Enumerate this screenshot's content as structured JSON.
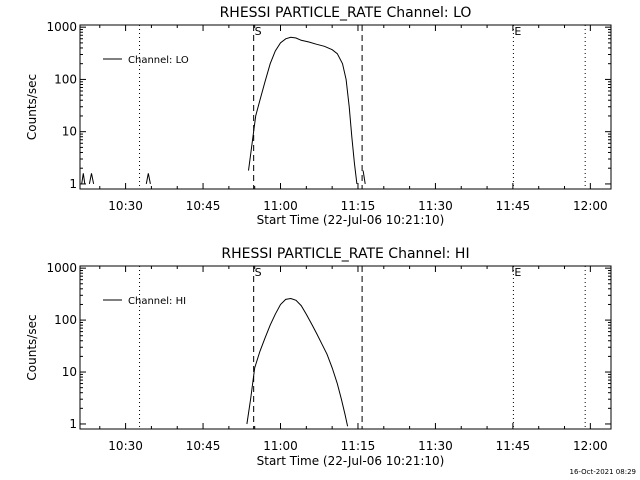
{
  "footer_timestamp": "16-Oct-2021 08:29",
  "chart_data": [
    {
      "type": "line",
      "title": "RHESSI PARTICLE_RATE Channel: LO",
      "xlabel": "Start Time (22-Jul-06 10:21:10)",
      "ylabel": "Counts/sec",
      "yscale": "log",
      "ylim": [
        0.8,
        1100
      ],
      "xlim_minutes_of_day": [
        621.17,
        724.0
      ],
      "x_ticks": [
        {
          "label": "10:30",
          "t": 630
        },
        {
          "label": "10:45",
          "t": 645
        },
        {
          "label": "11:00",
          "t": 660
        },
        {
          "label": "11:15",
          "t": 675
        },
        {
          "label": "11:30",
          "t": 690
        },
        {
          "label": "11:45",
          "t": 705
        },
        {
          "label": "12:00",
          "t": 720
        }
      ],
      "y_ticks": [
        {
          "label": "1",
          "v": 1
        },
        {
          "label": "10",
          "v": 10
        },
        {
          "label": "100",
          "v": 100
        },
        {
          "label": "1000",
          "v": 1000
        }
      ],
      "legend": {
        "position": "top-left",
        "entries": [
          "Channel: LO"
        ]
      },
      "markers": [
        {
          "label": "S",
          "t": 654.8,
          "style": "dashed"
        },
        {
          "label": "",
          "t": 675.8,
          "style": "dashed"
        },
        {
          "label": "E",
          "t": 705.1,
          "style": "dotted"
        },
        {
          "label": "",
          "t": 632.7,
          "style": "dotted"
        },
        {
          "label": "",
          "t": 719.0,
          "style": "dotted"
        }
      ],
      "series": [
        {
          "name": "Channel: LO",
          "points": [
            [
              621.5,
              1.0
            ],
            [
              621.8,
              1.6
            ],
            [
              622.1,
              1.0
            ],
            [
              623.0,
              1.0
            ],
            [
              623.4,
              1.6
            ],
            [
              623.8,
              1.0
            ],
            [
              634.0,
              1.0
            ],
            [
              634.4,
              1.6
            ],
            [
              634.8,
              1.0
            ]
          ],
          "main_points": [
            [
              653.8,
              1.8
            ],
            [
              654.5,
              6
            ],
            [
              655.2,
              20
            ],
            [
              656.0,
              40
            ],
            [
              657.0,
              90
            ],
            [
              658.0,
              200
            ],
            [
              659.0,
              350
            ],
            [
              660.0,
              500
            ],
            [
              661.0,
              600
            ],
            [
              662.0,
              640
            ],
            [
              663.0,
              620
            ],
            [
              664.0,
              560
            ],
            [
              665.5,
              520
            ],
            [
              667.0,
              470
            ],
            [
              668.5,
              430
            ],
            [
              670.0,
              370
            ],
            [
              671.0,
              310
            ],
            [
              672.0,
              200
            ],
            [
              672.7,
              100
            ],
            [
              673.3,
              30
            ],
            [
              673.8,
              8
            ],
            [
              674.3,
              2.5
            ],
            [
              674.8,
              1.0
            ]
          ],
          "tail_points": [
            [
              676.0,
              1.8
            ],
            [
              676.4,
              1.0
            ]
          ]
        }
      ]
    },
    {
      "type": "line",
      "title": "RHESSI PARTICLE_RATE Channel: HI",
      "xlabel": "Start Time (22-Jul-06 10:21:10)",
      "ylabel": "Counts/sec",
      "yscale": "log",
      "ylim": [
        0.8,
        1100
      ],
      "xlim_minutes_of_day": [
        621.17,
        724.0
      ],
      "x_ticks": [
        {
          "label": "10:30",
          "t": 630
        },
        {
          "label": "10:45",
          "t": 645
        },
        {
          "label": "11:00",
          "t": 660
        },
        {
          "label": "11:15",
          "t": 675
        },
        {
          "label": "11:30",
          "t": 690
        },
        {
          "label": "11:45",
          "t": 705
        },
        {
          "label": "12:00",
          "t": 720
        }
      ],
      "y_ticks": [
        {
          "label": "1",
          "v": 1
        },
        {
          "label": "10",
          "v": 10
        },
        {
          "label": "100",
          "v": 100
        },
        {
          "label": "1000",
          "v": 1000
        }
      ],
      "legend": {
        "position": "top-left",
        "entries": [
          "Channel: HI"
        ]
      },
      "markers": [
        {
          "label": "S",
          "t": 654.8,
          "style": "dashed"
        },
        {
          "label": "",
          "t": 675.8,
          "style": "dashed"
        },
        {
          "label": "E",
          "t": 705.1,
          "style": "dotted"
        },
        {
          "label": "",
          "t": 632.7,
          "style": "dotted"
        },
        {
          "label": "",
          "t": 719.0,
          "style": "dotted"
        }
      ],
      "series": [
        {
          "name": "Channel: HI",
          "points": [],
          "main_points": [
            [
              653.5,
              1.0
            ],
            [
              654.2,
              3
            ],
            [
              655.0,
              12
            ],
            [
              656.0,
              25
            ],
            [
              657.0,
              45
            ],
            [
              658.0,
              80
            ],
            [
              659.0,
              130
            ],
            [
              660.0,
              200
            ],
            [
              661.0,
              250
            ],
            [
              662.0,
              260
            ],
            [
              663.0,
              240
            ],
            [
              664.0,
              190
            ],
            [
              665.0,
              130
            ],
            [
              666.0,
              85
            ],
            [
              667.0,
              55
            ],
            [
              668.0,
              35
            ],
            [
              669.0,
              22
            ],
            [
              670.0,
              12
            ],
            [
              671.0,
              6
            ],
            [
              671.8,
              3
            ],
            [
              672.5,
              1.5
            ],
            [
              673.0,
              0.9
            ]
          ],
          "tail_points": []
        }
      ]
    }
  ]
}
